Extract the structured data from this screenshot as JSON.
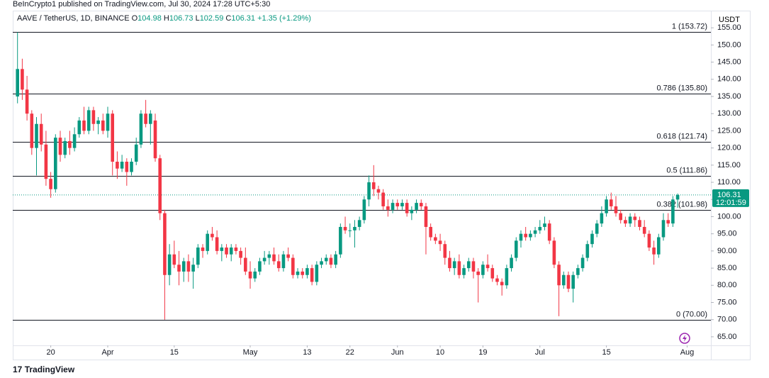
{
  "header": "BeInCrypto1 published on TradingView.com, Jul 30, 2024 17:28 UTC+5:30",
  "footer": "TradingView",
  "chart_data": {
    "type": "candlestick",
    "symbol": "AAVE / TetherUS, 1D, BINANCE",
    "ohlc_legend": [
      {
        "key": "O",
        "value": "104.98"
      },
      {
        "key": "H",
        "value": "106.73"
      },
      {
        "key": "L",
        "value": "102.59"
      },
      {
        "key": "C",
        "value": "106.31"
      }
    ],
    "change": "+1.35 (+1.29%)",
    "currency": "USDT",
    "up_color": "#089981",
    "down_color": "#f23645",
    "last_price": {
      "value": 106.31,
      "label": "106.31",
      "countdown": "12:01:59"
    },
    "ylim": [
      62.5,
      160
    ],
    "yticks": [
      {
        "value": 65,
        "label": "65.00"
      },
      {
        "value": 70,
        "label": "70.00"
      },
      {
        "value": 75,
        "label": "75.00"
      },
      {
        "value": 80,
        "label": "80.00"
      },
      {
        "value": 85,
        "label": "85.00"
      },
      {
        "value": 90,
        "label": "90.00"
      },
      {
        "value": 95,
        "label": "95.00"
      },
      {
        "value": 100,
        "label": "100.00"
      },
      {
        "value": 105,
        "label": "105.00"
      },
      {
        "value": 110,
        "label": "110.00"
      },
      {
        "value": 115,
        "label": "115.00"
      },
      {
        "value": 120,
        "label": "120.00"
      },
      {
        "value": 125,
        "label": "125.00"
      },
      {
        "value": 130,
        "label": "130.00"
      },
      {
        "value": 135,
        "label": "135.00"
      },
      {
        "value": 140,
        "label": "140.00"
      },
      {
        "value": 145,
        "label": "145.00"
      },
      {
        "value": 150,
        "label": "150.00"
      },
      {
        "value": 155,
        "label": "155.00"
      }
    ],
    "xlim": [
      "2024-03-12",
      "2024-08-06"
    ],
    "xticks": [
      {
        "value": "2024-03-20",
        "label": "20"
      },
      {
        "value": "2024-04-01",
        "label": "Apr"
      },
      {
        "value": "2024-04-15",
        "label": "15"
      },
      {
        "value": "2024-05-01",
        "label": "May"
      },
      {
        "value": "2024-05-13",
        "label": "13"
      },
      {
        "value": "2024-05-22",
        "label": "22"
      },
      {
        "value": "2024-06-01",
        "label": "Jun"
      },
      {
        "value": "2024-06-10",
        "label": "10"
      },
      {
        "value": "2024-06-19",
        "label": "19"
      },
      {
        "value": "2024-07-01",
        "label": "Jul"
      },
      {
        "value": "2024-07-15",
        "label": "15"
      },
      {
        "value": "2024-08-01",
        "label": "Aug"
      }
    ],
    "fib_levels": [
      {
        "label": "1 (153.72)",
        "value": 153.72
      },
      {
        "label": "0.786 (135.80)",
        "value": 135.8
      },
      {
        "label": "0.618 (121.74)",
        "value": 121.74
      },
      {
        "label": "0.5 (111.86)",
        "value": 111.86
      },
      {
        "label": "0.382 (101.98)",
        "value": 101.98
      },
      {
        "label": "0 (70.00)",
        "value": 70.0
      }
    ],
    "candles": [
      [
        "2024-03-13",
        135,
        153.7,
        133,
        143
      ],
      [
        "2024-03-14",
        143,
        146,
        134,
        137
      ],
      [
        "2024-03-15",
        137,
        141,
        128,
        130
      ],
      [
        "2024-03-16",
        130,
        131,
        118,
        120
      ],
      [
        "2024-03-17",
        120,
        129,
        112,
        127
      ],
      [
        "2024-03-18",
        127,
        130,
        119,
        121
      ],
      [
        "2024-03-19",
        121,
        125,
        109,
        111
      ],
      [
        "2024-03-20",
        111,
        113,
        105.5,
        108
      ],
      [
        "2024-03-21",
        108,
        124,
        107,
        123
      ],
      [
        "2024-03-22",
        123,
        125,
        116,
        118
      ],
      [
        "2024-03-23",
        118,
        123,
        117,
        122
      ],
      [
        "2024-03-24",
        122,
        125,
        118,
        120
      ],
      [
        "2024-03-25",
        120,
        126,
        119,
        124
      ],
      [
        "2024-03-26",
        124,
        129,
        123,
        128
      ],
      [
        "2024-03-27",
        128,
        132,
        124,
        125
      ],
      [
        "2024-03-28",
        125,
        132,
        124,
        131
      ],
      [
        "2024-03-29",
        131,
        132,
        125,
        127
      ],
      [
        "2024-03-30",
        127,
        129,
        124,
        128
      ],
      [
        "2024-03-31",
        128,
        130,
        124,
        125
      ],
      [
        "2024-04-01",
        125,
        132,
        123,
        130
      ],
      [
        "2024-04-02",
        130,
        131,
        112,
        116
      ],
      [
        "2024-04-03",
        116,
        119,
        111,
        114
      ],
      [
        "2024-04-04",
        114,
        118,
        113,
        116
      ],
      [
        "2024-04-05",
        116,
        117,
        109,
        113
      ],
      [
        "2024-04-06",
        113,
        117,
        112,
        116
      ],
      [
        "2024-04-07",
        116,
        123,
        115,
        121
      ],
      [
        "2024-04-08",
        121,
        131,
        120,
        130
      ],
      [
        "2024-04-09",
        130,
        134,
        126,
        127
      ],
      [
        "2024-04-10",
        127,
        131,
        121,
        130
      ],
      [
        "2024-04-11",
        128,
        130,
        116,
        117
      ],
      [
        "2024-04-12",
        117,
        118,
        99,
        101
      ],
      [
        "2024-04-13",
        101,
        102,
        70,
        83
      ],
      [
        "2024-04-14",
        83,
        92,
        80,
        89
      ],
      [
        "2024-04-15",
        89,
        93,
        85,
        86
      ],
      [
        "2024-04-16",
        86,
        90,
        80,
        84
      ],
      [
        "2024-04-17",
        84,
        88,
        81,
        87
      ],
      [
        "2024-04-18",
        87,
        89,
        81,
        84
      ],
      [
        "2024-04-19",
        84,
        88,
        79,
        86
      ],
      [
        "2024-04-20",
        86,
        92,
        85,
        91
      ],
      [
        "2024-04-21",
        91,
        92,
        88,
        90
      ],
      [
        "2024-04-22",
        90,
        96,
        89,
        95
      ],
      [
        "2024-04-23",
        95,
        97,
        93,
        94
      ],
      [
        "2024-04-24",
        94,
        96,
        89,
        90
      ],
      [
        "2024-04-25",
        90,
        92,
        87,
        91
      ],
      [
        "2024-04-26",
        91,
        92,
        88,
        89
      ],
      [
        "2024-04-27",
        89,
        92,
        87,
        91
      ],
      [
        "2024-04-28",
        91,
        92,
        89,
        90
      ],
      [
        "2024-04-29",
        90,
        91,
        86,
        88
      ],
      [
        "2024-04-30",
        88,
        91,
        83,
        84
      ],
      [
        "2024-05-01",
        84,
        87,
        79,
        82
      ],
      [
        "2024-05-02",
        82,
        85,
        81,
        84
      ],
      [
        "2024-05-03",
        84,
        88,
        83,
        87
      ],
      [
        "2024-05-04",
        87,
        90,
        86,
        88
      ],
      [
        "2024-05-05",
        88,
        90,
        86,
        89
      ],
      [
        "2024-05-06",
        89,
        91,
        86,
        87
      ],
      [
        "2024-05-07",
        87,
        89,
        84,
        85
      ],
      [
        "2024-05-08",
        85,
        90,
        84,
        89
      ],
      [
        "2024-05-09",
        89,
        91,
        87,
        88
      ],
      [
        "2024-05-10",
        88,
        89,
        82,
        83
      ],
      [
        "2024-05-11",
        83,
        85,
        82,
        84
      ],
      [
        "2024-05-12",
        84,
        85,
        82,
        83
      ],
      [
        "2024-05-13",
        83,
        86,
        82,
        85
      ],
      [
        "2024-05-14",
        85,
        86,
        80,
        81
      ],
      [
        "2024-05-15",
        81,
        87,
        80,
        86
      ],
      [
        "2024-05-16",
        86,
        88,
        85,
        87
      ],
      [
        "2024-05-17",
        87,
        89,
        86,
        88
      ],
      [
        "2024-05-18",
        88,
        89,
        85,
        86
      ],
      [
        "2024-05-19",
        86,
        90,
        85,
        89
      ],
      [
        "2024-05-20",
        89,
        98,
        88,
        97
      ],
      [
        "2024-05-21",
        97,
        100,
        95,
        96
      ],
      [
        "2024-05-22",
        96,
        98,
        94,
        96
      ],
      [
        "2024-05-23",
        96,
        99,
        91,
        97
      ],
      [
        "2024-05-24",
        97,
        100,
        96,
        99
      ],
      [
        "2024-05-25",
        99,
        106,
        98,
        105
      ],
      [
        "2024-05-26",
        105,
        112,
        103,
        110
      ],
      [
        "2024-05-27",
        110,
        115,
        106,
        108
      ],
      [
        "2024-05-28",
        108,
        109,
        105,
        107
      ],
      [
        "2024-05-29",
        107,
        108,
        102,
        103
      ],
      [
        "2024-05-30",
        103,
        105,
        100,
        102
      ],
      [
        "2024-05-31",
        102,
        105,
        101,
        104
      ],
      [
        "2024-06-01",
        104,
        105,
        102,
        103
      ],
      [
        "2024-06-02",
        103,
        105,
        102,
        104
      ],
      [
        "2024-06-03",
        104,
        105,
        100,
        101
      ],
      [
        "2024-06-04",
        101,
        103,
        99,
        102
      ],
      [
        "2024-06-05",
        102,
        105,
        101,
        104
      ],
      [
        "2024-06-06",
        104,
        105,
        102,
        103
      ],
      [
        "2024-06-07",
        103,
        104,
        89,
        97
      ],
      [
        "2024-06-08",
        97,
        98,
        93,
        94
      ],
      [
        "2024-06-09",
        94,
        95,
        92,
        93
      ],
      [
        "2024-06-10",
        93,
        95,
        90,
        92
      ],
      [
        "2024-06-11",
        92,
        93,
        86,
        88
      ],
      [
        "2024-06-12",
        88,
        90,
        84,
        85
      ],
      [
        "2024-06-13",
        85,
        88,
        83,
        87
      ],
      [
        "2024-06-14",
        87,
        89,
        82,
        83
      ],
      [
        "2024-06-15",
        83,
        86,
        82,
        85
      ],
      [
        "2024-06-16",
        85,
        88,
        84,
        87
      ],
      [
        "2024-06-17",
        87,
        88,
        82,
        84
      ],
      [
        "2024-06-18",
        84,
        85,
        75,
        83
      ],
      [
        "2024-06-19",
        83,
        87,
        82,
        86
      ],
      [
        "2024-06-20",
        86,
        89,
        84,
        85
      ],
      [
        "2024-06-21",
        85,
        86,
        81,
        82
      ],
      [
        "2024-06-22",
        82,
        83,
        80,
        81
      ],
      [
        "2024-06-23",
        81,
        82,
        77,
        80
      ],
      [
        "2024-06-24",
        80,
        86,
        79,
        85
      ],
      [
        "2024-06-25",
        85,
        89,
        84,
        88
      ],
      [
        "2024-06-26",
        88,
        94,
        87,
        93
      ],
      [
        "2024-06-27",
        93,
        96,
        91,
        95
      ],
      [
        "2024-06-28",
        95,
        97,
        93,
        94
      ],
      [
        "2024-06-29",
        94,
        96,
        93,
        95
      ],
      [
        "2024-06-30",
        95,
        97,
        94,
        96
      ],
      [
        "2024-07-01",
        96,
        99,
        95,
        97
      ],
      [
        "2024-07-02",
        97,
        100,
        96,
        98
      ],
      [
        "2024-07-03",
        98,
        99,
        92,
        93
      ],
      [
        "2024-07-04",
        93,
        94,
        85,
        86
      ],
      [
        "2024-07-05",
        86,
        87,
        71,
        80
      ],
      [
        "2024-07-06",
        80,
        84,
        79,
        83
      ],
      [
        "2024-07-07",
        83,
        84,
        78,
        79
      ],
      [
        "2024-07-08",
        79,
        84,
        75,
        83
      ],
      [
        "2024-07-09",
        83,
        86,
        82,
        85
      ],
      [
        "2024-07-10",
        85,
        89,
        84,
        88
      ],
      [
        "2024-07-11",
        88,
        93,
        87,
        92
      ],
      [
        "2024-07-12",
        92,
        96,
        91,
        95
      ],
      [
        "2024-07-13",
        95,
        99,
        94,
        98
      ],
      [
        "2024-07-14",
        98,
        103,
        97,
        101
      ],
      [
        "2024-07-15",
        101,
        106,
        100,
        105
      ],
      [
        "2024-07-16",
        105,
        107,
        102,
        103
      ],
      [
        "2024-07-17",
        103,
        106,
        100,
        101
      ],
      [
        "2024-07-18",
        101,
        102,
        98,
        99
      ],
      [
        "2024-07-19",
        99,
        100,
        97,
        98
      ],
      [
        "2024-07-20",
        98,
        101,
        97,
        100
      ],
      [
        "2024-07-21",
        100,
        101,
        97,
        99
      ],
      [
        "2024-07-22",
        99,
        100,
        96,
        97
      ],
      [
        "2024-07-23",
        97,
        99,
        94,
        95
      ],
      [
        "2024-07-24",
        95,
        96,
        90,
        91
      ],
      [
        "2024-07-25",
        91,
        93,
        86,
        89
      ],
      [
        "2024-07-26",
        89,
        95,
        88,
        94
      ],
      [
        "2024-07-27",
        94,
        101,
        93,
        99
      ],
      [
        "2024-07-28",
        99,
        101,
        97,
        98
      ],
      [
        "2024-07-29",
        98,
        106,
        97,
        105
      ],
      [
        "2024-07-30",
        104.98,
        106.73,
        102.59,
        106.31
      ]
    ]
  }
}
